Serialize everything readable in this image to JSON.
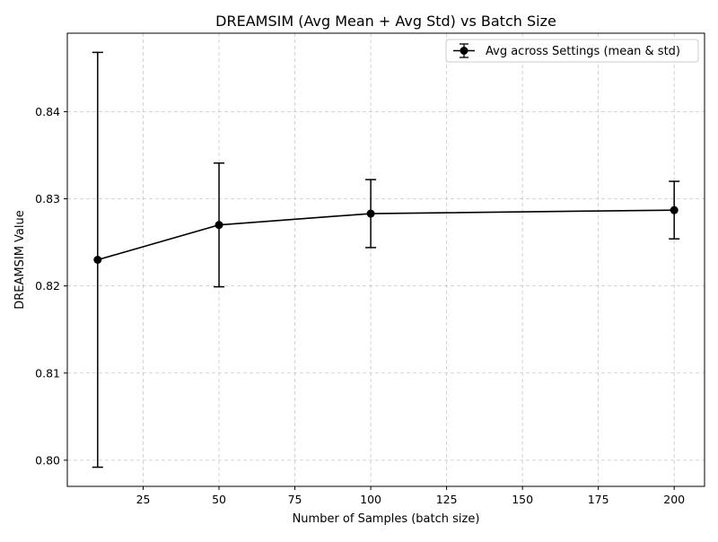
{
  "chart_data": {
    "type": "line",
    "title": "DREAMSIM (Avg Mean + Avg Std) vs Batch Size",
    "xlabel": "Number of Samples (batch size)",
    "ylabel": "DREAMSIM Value",
    "xlim": [
      0,
      210
    ],
    "ylim": [
      0.797,
      0.849
    ],
    "x_ticks": [
      25,
      50,
      75,
      100,
      125,
      150,
      175,
      200
    ],
    "y_ticks": [
      0.8,
      0.81,
      0.82,
      0.83,
      0.84
    ],
    "grid": true,
    "legend_position": "top-right",
    "series": [
      {
        "name": "Avg across Settings (mean & std)",
        "color": "#000000",
        "marker": "circle",
        "x": [
          10,
          50,
          100,
          200
        ],
        "y": [
          0.823,
          0.827,
          0.8283,
          0.8287
        ],
        "error": [
          0.0238,
          0.0071,
          0.0039,
          0.0033
        ]
      }
    ]
  }
}
